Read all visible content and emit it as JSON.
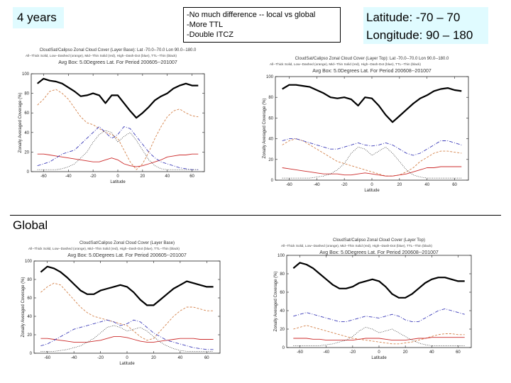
{
  "labels": {
    "four_years": "4 years",
    "global": "Global"
  },
  "notes": [
    "-No much difference -- local vs global",
    "-More TTL",
    "-Double ITCZ"
  ],
  "region": {
    "lat": "Latitude:   -70 – 70",
    "lon": "Longitude: 90 – 180"
  },
  "series_colors": {
    "all_thick": "#000000",
    "low": "#d4824a",
    "mid": "#cc2a2a",
    "high": "#3a3ab8",
    "ttl": "#222222"
  },
  "chart_data": [
    {
      "id": "p1",
      "type": "line",
      "title": "CloudSat/Calipso Zonal Cloud Cover (Layer Base): Lat -70.0--70.0  Lon 90.0--180.0",
      "legend": "All--Thick Solid, Low--Dashed (orange), Mid--Thin Solid (red), High--Dash-Dot (blue), TTL--Thin (black)",
      "subtitle": "Avg Box: 5.0Degrees Lat. For Period 200605--201007",
      "xlabel": "Latitude",
      "ylabel": "Zonally Averaged Coverage (%)",
      "xlim": [
        -70,
        70
      ],
      "ylim": [
        0,
        100
      ],
      "xticks": [
        -60,
        -40,
        -20,
        0,
        20,
        40,
        60
      ],
      "yticks": [
        0,
        20,
        40,
        60,
        80,
        100
      ],
      "x": [
        -65,
        -60,
        -55,
        -50,
        -45,
        -40,
        -35,
        -30,
        -25,
        -20,
        -15,
        -10,
        -5,
        0,
        5,
        10,
        15,
        20,
        25,
        30,
        35,
        40,
        45,
        50,
        55,
        60,
        65
      ],
      "series": [
        {
          "name": "All",
          "style": "thick",
          "values": [
            90,
            95,
            93,
            92,
            90,
            86,
            82,
            77,
            78,
            80,
            78,
            70,
            78,
            78,
            70,
            62,
            55,
            60,
            66,
            73,
            77,
            80,
            85,
            88,
            90,
            88,
            88
          ]
        },
        {
          "name": "Low",
          "style": "dashed",
          "values": [
            68,
            74,
            82,
            84,
            80,
            74,
            65,
            56,
            50,
            48,
            44,
            40,
            38,
            34,
            22,
            10,
            2,
            8,
            20,
            34,
            46,
            56,
            62,
            64,
            60,
            57,
            56
          ]
        },
        {
          "name": "Mid",
          "style": "solid",
          "values": [
            18,
            18,
            17,
            16,
            15,
            14,
            13,
            12,
            11,
            10,
            10,
            12,
            14,
            12,
            8,
            6,
            5,
            6,
            8,
            10,
            12,
            15,
            16,
            17,
            17,
            18,
            18
          ]
        },
        {
          "name": "High",
          "style": "dashdot",
          "values": [
            6,
            8,
            10,
            14,
            18,
            20,
            22,
            28,
            34,
            40,
            46,
            40,
            34,
            38,
            46,
            44,
            36,
            28,
            20,
            14,
            10,
            8,
            6,
            4,
            3,
            2,
            2
          ]
        },
        {
          "name": "TTL",
          "style": "thin",
          "values": [
            2,
            2,
            2,
            2,
            3,
            5,
            8,
            14,
            20,
            30,
            38,
            42,
            40,
            30,
            36,
            40,
            32,
            22,
            12,
            6,
            3,
            2,
            2,
            2,
            2,
            2,
            2
          ]
        }
      ]
    },
    {
      "id": "p2",
      "type": "line",
      "title": "CloudSat/Calipso Zonal Cloud Cover (Layer Top): Lat -70.0--70.0  Lon 90.0--180.0",
      "legend": "All--Thick Solid, Low--Dashed (orange), Mid--Thin Solid (red), High--Dash-Dot (blue), TTL--Thin (black)",
      "subtitle": "Avg Box: 5.0Degrees Lat. For Period 200608--201007",
      "xlabel": "Latitude",
      "ylabel": "Zonally Averaged Coverage (%)",
      "xlim": [
        -70,
        70
      ],
      "ylim": [
        0,
        100
      ],
      "xticks": [
        -60,
        -40,
        -20,
        0,
        20,
        40,
        60
      ],
      "yticks": [
        0,
        20,
        40,
        60,
        80,
        100
      ],
      "x": [
        -65,
        -60,
        -55,
        -50,
        -45,
        -40,
        -35,
        -30,
        -25,
        -20,
        -15,
        -10,
        -5,
        0,
        5,
        10,
        15,
        20,
        25,
        30,
        35,
        40,
        45,
        50,
        55,
        60,
        65
      ],
      "series": [
        {
          "name": "All",
          "style": "thick",
          "values": [
            88,
            92,
            92,
            91,
            90,
            87,
            84,
            80,
            79,
            80,
            78,
            72,
            80,
            79,
            72,
            63,
            56,
            62,
            68,
            74,
            79,
            82,
            86,
            88,
            89,
            87,
            86
          ]
        },
        {
          "name": "Low",
          "style": "dashed",
          "values": [
            34,
            38,
            40,
            38,
            34,
            30,
            26,
            22,
            18,
            16,
            14,
            12,
            10,
            8,
            6,
            4,
            4,
            5,
            8,
            12,
            18,
            22,
            26,
            28,
            28,
            27,
            26
          ]
        },
        {
          "name": "Mid",
          "style": "solid",
          "values": [
            12,
            11,
            10,
            9,
            8,
            7,
            6,
            6,
            6,
            5,
            5,
            6,
            7,
            6,
            5,
            4,
            4,
            5,
            6,
            8,
            10,
            12,
            12,
            13,
            13,
            13,
            13
          ]
        },
        {
          "name": "High",
          "style": "dashdot",
          "values": [
            38,
            40,
            40,
            38,
            36,
            34,
            32,
            30,
            30,
            32,
            34,
            36,
            34,
            33,
            34,
            36,
            34,
            30,
            26,
            24,
            26,
            30,
            34,
            38,
            38,
            36,
            34
          ]
        },
        {
          "name": "TTL",
          "style": "thin",
          "values": [
            2,
            2,
            2,
            2,
            2,
            3,
            4,
            6,
            10,
            16,
            26,
            32,
            30,
            24,
            28,
            32,
            26,
            18,
            10,
            5,
            3,
            2,
            2,
            2,
            2,
            2,
            2
          ]
        }
      ]
    },
    {
      "id": "p3",
      "type": "line",
      "title": "CloudSat/Calipso Zonal Cloud Cover (Layer Base)",
      "legend": "All--Thick Solid, Low--Dashed (orange), Mid--Thin Solid (red), High--Dash-Dot (blue), TTL--Thin (black)",
      "subtitle": "Avg Box: 5.0Degrees Lat. For Period 200605--201007",
      "xlabel": "Latitude",
      "ylabel": "Zonally Averaged Coverage (%)",
      "xlim": [
        -70,
        70
      ],
      "ylim": [
        0,
        100
      ],
      "xticks": [
        -60,
        -40,
        -20,
        0,
        20,
        40,
        60
      ],
      "yticks": [
        0,
        20,
        40,
        60,
        80,
        100
      ],
      "x": [
        -65,
        -60,
        -55,
        -50,
        -45,
        -40,
        -35,
        -30,
        -25,
        -20,
        -15,
        -10,
        -5,
        0,
        5,
        10,
        15,
        20,
        25,
        30,
        35,
        40,
        45,
        50,
        55,
        60,
        65
      ],
      "series": [
        {
          "name": "All",
          "style": "thick",
          "values": [
            88,
            94,
            92,
            88,
            82,
            75,
            68,
            64,
            64,
            68,
            70,
            72,
            74,
            72,
            66,
            58,
            52,
            52,
            58,
            64,
            70,
            74,
            78,
            76,
            74,
            72,
            72
          ]
        },
        {
          "name": "Low",
          "style": "dashed",
          "values": [
            66,
            72,
            76,
            74,
            66,
            58,
            50,
            44,
            40,
            38,
            36,
            34,
            32,
            30,
            24,
            18,
            14,
            16,
            24,
            32,
            40,
            46,
            50,
            50,
            48,
            46,
            46
          ]
        },
        {
          "name": "Mid",
          "style": "solid",
          "values": [
            16,
            16,
            15,
            14,
            13,
            12,
            12,
            12,
            13,
            14,
            16,
            18,
            18,
            17,
            15,
            13,
            12,
            12,
            13,
            14,
            15,
            16,
            16,
            16,
            15,
            15,
            15
          ]
        },
        {
          "name": "High",
          "style": "dashdot",
          "values": [
            8,
            10,
            14,
            18,
            22,
            26,
            28,
            30,
            32,
            34,
            36,
            34,
            30,
            32,
            36,
            34,
            28,
            22,
            18,
            14,
            12,
            10,
            8,
            6,
            5,
            4,
            4
          ]
        },
        {
          "name": "TTL",
          "style": "thin",
          "values": [
            2,
            2,
            2,
            3,
            4,
            6,
            8,
            12,
            16,
            22,
            28,
            30,
            28,
            24,
            26,
            28,
            24,
            18,
            12,
            8,
            5,
            3,
            2,
            2,
            2,
            2,
            2
          ]
        }
      ]
    },
    {
      "id": "p4",
      "type": "line",
      "title": "CloudSat/Calipso Zonal Cloud Cover (Layer Top)",
      "legend": "All--Thick Solid, Low--Dashed (orange), Mid--Thin Solid (red), High--Dash-Dot (blue), TTL--Thin (black)",
      "subtitle": "Avg Box: 5.0Degrees Lat. For Period 200608--201007",
      "xlabel": "Latitude",
      "ylabel": "Zonally Averaged Coverage (%)",
      "xlim": [
        -70,
        70
      ],
      "ylim": [
        0,
        100
      ],
      "xticks": [
        -60,
        -40,
        -20,
        0,
        20,
        40,
        60
      ],
      "yticks": [
        0,
        20,
        40,
        60,
        80,
        100
      ],
      "x": [
        -65,
        -60,
        -55,
        -50,
        -45,
        -40,
        -35,
        -30,
        -25,
        -20,
        -15,
        -10,
        -5,
        0,
        5,
        10,
        15,
        20,
        25,
        30,
        35,
        40,
        45,
        50,
        55,
        60,
        65
      ],
      "series": [
        {
          "name": "All",
          "style": "thick",
          "values": [
            86,
            92,
            90,
            86,
            80,
            74,
            68,
            64,
            64,
            66,
            70,
            72,
            74,
            72,
            66,
            58,
            54,
            54,
            58,
            64,
            70,
            74,
            76,
            76,
            74,
            72,
            72
          ]
        },
        {
          "name": "Low",
          "style": "dashed",
          "values": [
            20,
            22,
            24,
            22,
            20,
            18,
            16,
            14,
            12,
            10,
            9,
            8,
            7,
            6,
            5,
            4,
            4,
            5,
            6,
            8,
            10,
            12,
            14,
            15,
            15,
            14,
            14
          ]
        },
        {
          "name": "Mid",
          "style": "solid",
          "values": [
            10,
            10,
            10,
            9,
            9,
            8,
            8,
            8,
            8,
            8,
            9,
            10,
            10,
            10,
            9,
            8,
            8,
            8,
            9,
            10,
            10,
            11,
            11,
            11,
            11,
            11,
            11
          ]
        },
        {
          "name": "High",
          "style": "dashdot",
          "values": [
            34,
            36,
            38,
            36,
            34,
            32,
            30,
            28,
            28,
            30,
            32,
            34,
            33,
            32,
            34,
            36,
            34,
            30,
            28,
            28,
            32,
            36,
            40,
            42,
            40,
            38,
            36
          ]
        },
        {
          "name": "TTL",
          "style": "thin",
          "values": [
            2,
            2,
            2,
            2,
            2,
            3,
            4,
            6,
            8,
            12,
            18,
            22,
            20,
            16,
            18,
            20,
            16,
            12,
            8,
            5,
            3,
            2,
            2,
            2,
            2,
            2,
            2
          ]
        }
      ]
    }
  ]
}
